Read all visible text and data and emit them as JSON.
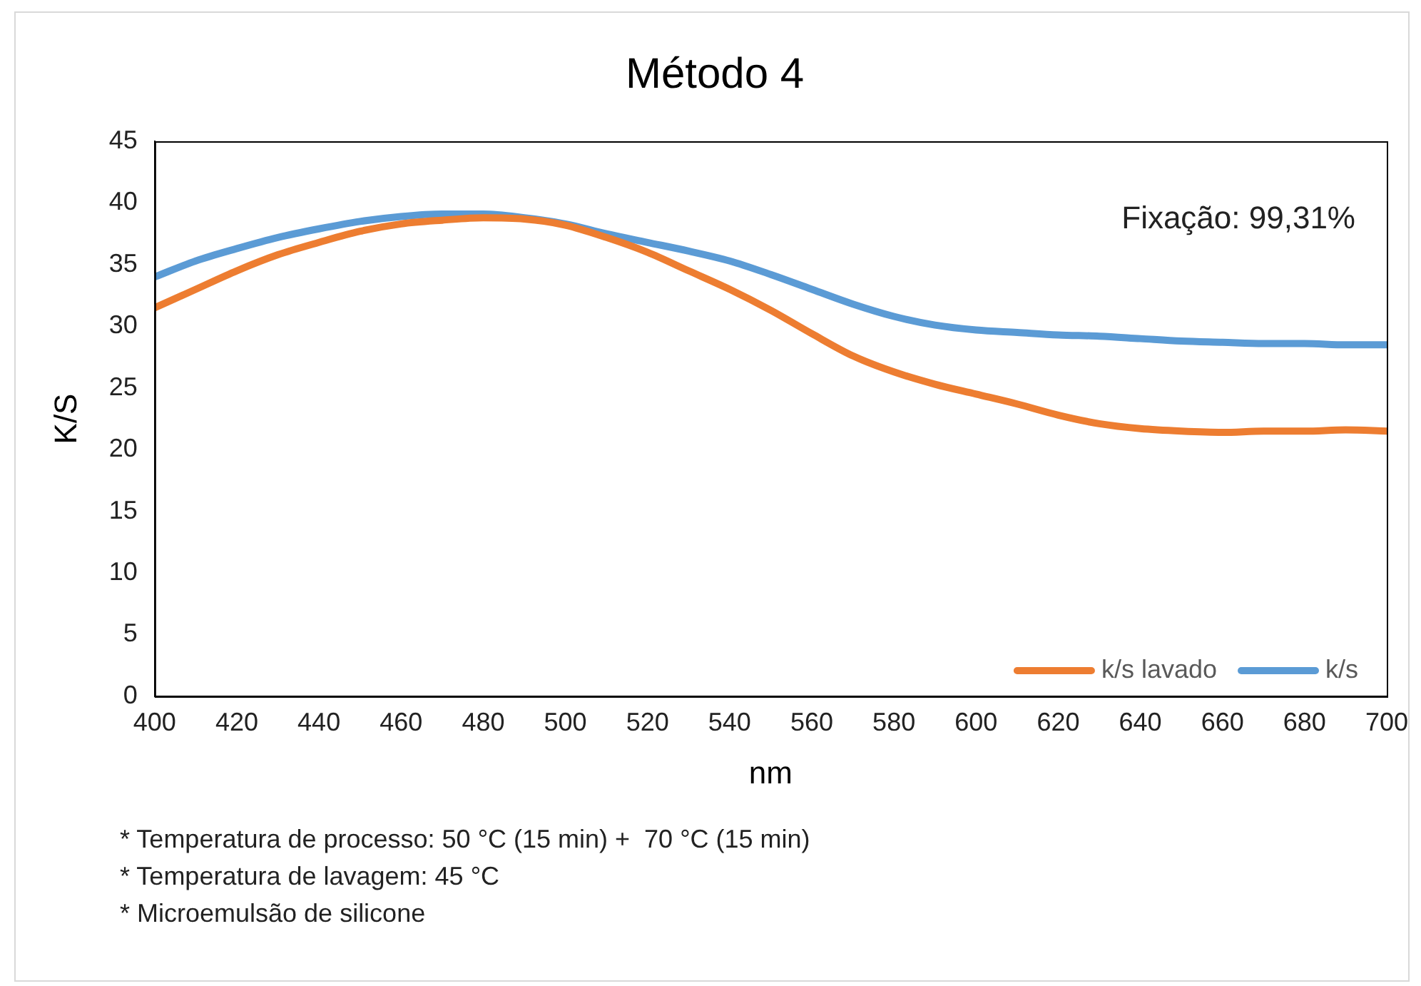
{
  "chart_data": {
    "type": "line",
    "title": "Método 4",
    "xlabel": "nm",
    "ylabel": "K/S",
    "x": [
      400,
      410,
      420,
      430,
      440,
      450,
      460,
      470,
      480,
      490,
      500,
      510,
      520,
      530,
      540,
      550,
      560,
      570,
      580,
      590,
      600,
      610,
      620,
      630,
      640,
      650,
      660,
      670,
      680,
      690,
      700
    ],
    "xlim": [
      400,
      700
    ],
    "xticks": [
      400,
      420,
      440,
      460,
      480,
      500,
      520,
      540,
      560,
      580,
      600,
      620,
      640,
      660,
      680,
      700
    ],
    "ylim": [
      0,
      45
    ],
    "yticks": [
      0,
      5,
      10,
      15,
      20,
      25,
      30,
      35,
      40,
      45
    ],
    "grid": false,
    "legend": "bottom right",
    "marker": "none",
    "line_style": "solid",
    "series": [
      {
        "name": "k/s lavado",
        "color": "#ed7d31",
        "values": [
          31.5,
          33,
          34.5,
          35.8,
          36.8,
          37.7,
          38.3,
          38.6,
          38.8,
          38.7,
          38.2,
          37.2,
          36,
          34.5,
          33,
          31.3,
          29.4,
          27.6,
          26.3,
          25.3,
          24.5,
          23.7,
          22.8,
          22.1,
          21.7,
          21.5,
          21.4,
          21.5,
          21.5,
          21.6,
          21.5
        ]
      },
      {
        "name": "k/s",
        "color": "#5b9bd5",
        "values": [
          34,
          35.3,
          36.3,
          37.2,
          37.9,
          38.5,
          38.9,
          39.1,
          39.1,
          38.8,
          38.3,
          37.5,
          36.8,
          36.1,
          35.3,
          34.2,
          33,
          31.8,
          30.8,
          30.1,
          29.7,
          29.5,
          29.3,
          29.2,
          29,
          28.8,
          28.7,
          28.6,
          28.6,
          28.5,
          28.5
        ]
      }
    ],
    "annotations": [
      "Fixação: 99,31%",
      "* Temperatura de processo: 50 °C (15 min) +  70 °C (15 min)",
      "* Temperatura de lavagem: 45 °C",
      "* Microemulsão de silicone"
    ]
  }
}
